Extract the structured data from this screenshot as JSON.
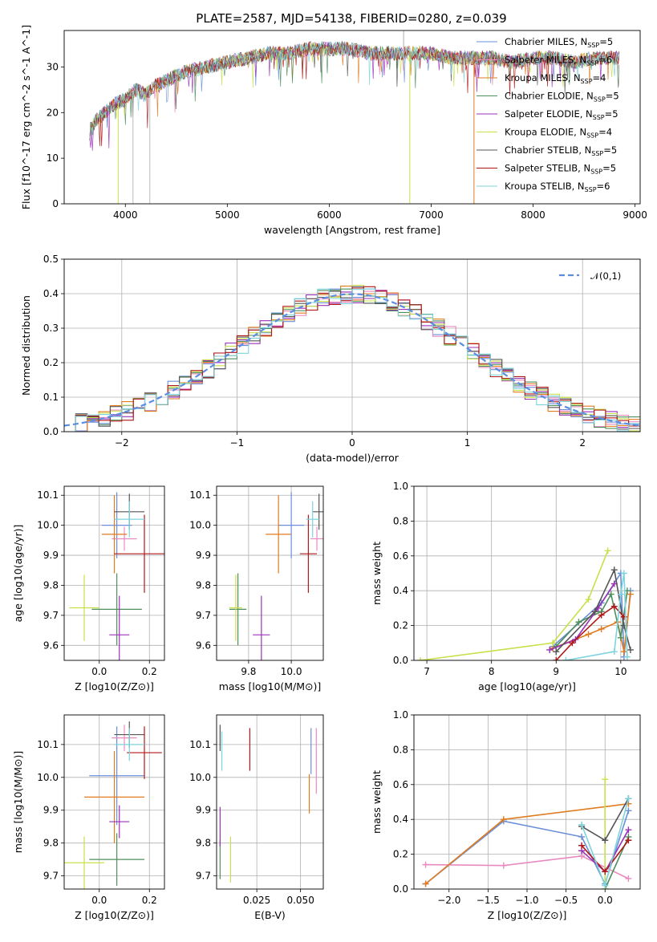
{
  "title": "PLATE=2587, MJD=54138, FIBERID=0280, z=0.039",
  "series": [
    {
      "name": "Chabrier MILES, N_SSP=5",
      "color": "#6a8fd8"
    },
    {
      "name": "Salpeter MILES, N_SSP=6",
      "color": "#e88ac0"
    },
    {
      "name": "Kroupa MILES, N_SSP=4",
      "color": "#e07b20"
    },
    {
      "name": "Chabrier ELODIE, N_SSP=5",
      "color": "#4e8f5e"
    },
    {
      "name": "Salpeter ELODIE, N_SSP=5",
      "color": "#9b30b8"
    },
    {
      "name": "Kroupa ELODIE, N_SSP=4",
      "color": "#c8e04a"
    },
    {
      "name": "Chabrier STELIB, N_SSP=5",
      "color": "#555555"
    },
    {
      "name": "Salpeter STELIB, N_SSP=5",
      "color": "#b01818"
    },
    {
      "name": "Kroupa STELIB, N_SSP=6",
      "color": "#7dd4dc"
    }
  ],
  "chart_data": [
    {
      "id": "spectrum",
      "type": "line",
      "xlabel": "wavelength [Angstrom, rest frame]",
      "ylabel": "Flux [fλ10^-17 erg cm^-2 s^-1 A^-1]",
      "xlim": [
        3400,
        9050
      ],
      "ylim": [
        0,
        38
      ],
      "xticks": [
        4000,
        5000,
        6000,
        7000,
        8000,
        9000
      ],
      "yticks": [
        0,
        10,
        20,
        30
      ],
      "x": [
        3650,
        3700,
        3800,
        3900,
        4000,
        4100,
        4200,
        4300,
        4400,
        4500,
        4600,
        4800,
        5000,
        5200,
        5400,
        5600,
        5800,
        6000,
        6200,
        6400,
        6600,
        6800,
        7000,
        7200,
        7400,
        7600,
        7800,
        8000,
        8200,
        8400,
        8600,
        8800
      ],
      "y": [
        16,
        18,
        20,
        22,
        23,
        25,
        24,
        26,
        27,
        28,
        29,
        30,
        31,
        32,
        33,
        33,
        34,
        34,
        34,
        33,
        33,
        33,
        33,
        32,
        32,
        32,
        31,
        32,
        32,
        31,
        32,
        32
      ]
    },
    {
      "id": "residuals",
      "type": "histogram",
      "xlabel": "(data-model)/error",
      "ylabel": "Normed distribution",
      "xlim": [
        -2.5,
        2.5
      ],
      "ylim": [
        0,
        0.5
      ],
      "xticks": [
        -2,
        -1,
        0,
        1,
        2
      ],
      "xticklabels": [
        "−2",
        "−1",
        "0",
        "1",
        "2"
      ],
      "yticks": [
        0,
        0.1,
        0.2,
        0.3,
        0.4,
        0.5
      ],
      "yticklabels": [
        "0.0",
        "0.1",
        "0.2",
        "0.3",
        "0.4",
        "0.5"
      ],
      "reference_label": "𝒩(0,1)",
      "legend": "top-right"
    },
    {
      "id": "age_vs_Z",
      "type": "scatter",
      "xlabel": "Z [log10(Z/Z⊙)]",
      "ylabel": "age [log10(age/yr)]",
      "xlim": [
        -0.14,
        0.26
      ],
      "ylim": [
        9.55,
        10.13
      ],
      "xticks": [
        0.0,
        0.2
      ],
      "xticklabels": [
        "0.0",
        "0.2"
      ],
      "yticks": [
        9.6,
        9.7,
        9.8,
        9.9,
        10.0,
        10.1
      ],
      "yticklabels": [
        "9.6",
        "9.7",
        "9.8",
        "9.9",
        "10.0",
        "10.1"
      ],
      "points": [
        {
          "x": 0.07,
          "y": 10.0,
          "xerr": 0.06,
          "yerr": 0.11
        },
        {
          "x": 0.1,
          "y": 9.955,
          "xerr": 0.05,
          "yerr": 0.04
        },
        {
          "x": 0.06,
          "y": 9.97,
          "xerr": 0.05,
          "yerr": 0.13
        },
        {
          "x": 0.07,
          "y": 9.72,
          "xerr": 0.1,
          "yerr": 0.12
        },
        {
          "x": 0.08,
          "y": 9.635,
          "xerr": 0.04,
          "yerr": 0.13
        },
        {
          "x": -0.06,
          "y": 9.725,
          "xerr": 0.06,
          "yerr": 0.11
        },
        {
          "x": 0.12,
          "y": 10.045,
          "xerr": 0.06,
          "yerr": 0.06
        },
        {
          "x": 0.18,
          "y": 9.905,
          "xerr": 0.12,
          "yerr": 0.13
        },
        {
          "x": 0.12,
          "y": 10.02,
          "xerr": 0.06,
          "yerr": 0.06
        }
      ]
    },
    {
      "id": "age_vs_mass",
      "type": "scatter",
      "xlabel": "mass [log10(M/M⊙)]",
      "ylabel": "",
      "xlim": [
        9.65,
        10.15
      ],
      "ylim": [
        9.55,
        10.13
      ],
      "xticks": [
        9.8,
        10.0
      ],
      "xticklabels": [
        "9.8",
        "10.0"
      ],
      "yticks": [
        9.6,
        9.7,
        9.8,
        9.9,
        10.0,
        10.1
      ],
      "yticklabels": [
        "9.6",
        "9.7",
        "9.8",
        "9.9",
        "10.0",
        "10.1"
      ],
      "points": [
        {
          "x": 10.0,
          "y": 10.0,
          "xerr": 0.06,
          "yerr": 0.11
        },
        {
          "x": 10.12,
          "y": 9.955,
          "xerr": 0.03,
          "yerr": 0.04
        },
        {
          "x": 9.94,
          "y": 9.97,
          "xerr": 0.06,
          "yerr": 0.13
        },
        {
          "x": 9.75,
          "y": 9.72,
          "xerr": 0.04,
          "yerr": 0.12
        },
        {
          "x": 9.86,
          "y": 9.635,
          "xerr": 0.04,
          "yerr": 0.13
        },
        {
          "x": 9.74,
          "y": 9.725,
          "xerr": 0.03,
          "yerr": 0.11
        },
        {
          "x": 10.13,
          "y": 10.045,
          "xerr": 0.03,
          "yerr": 0.06
        },
        {
          "x": 10.08,
          "y": 9.905,
          "xerr": 0.04,
          "yerr": 0.13
        },
        {
          "x": 10.1,
          "y": 10.02,
          "xerr": 0.03,
          "yerr": 0.06
        }
      ]
    },
    {
      "id": "mass_weight_vs_age",
      "type": "line",
      "xlabel": "age [log10(age/yr)]",
      "ylabel": "mass weight",
      "xlim": [
        6.8,
        10.3
      ],
      "ylim": [
        0,
        1.0
      ],
      "xticks": [
        7,
        8,
        9,
        10
      ],
      "xticklabels": [
        "7",
        "8",
        "9",
        "10"
      ],
      "yticks": [
        0,
        0.2,
        0.4,
        0.6,
        0.8,
        1.0
      ],
      "yticklabels": [
        "0.0",
        "0.2",
        "0.4",
        "0.6",
        "0.8",
        "1.0"
      ],
      "lines": [
        {
          "x": [
            8.95,
            9.7,
            10.0,
            10.05,
            10.15
          ],
          "y": [
            0.08,
            0.33,
            0.5,
            0.02,
            0.4
          ]
        },
        {
          "x": 8.95,
          "yv": 0.06
        },
        {
          "x": [
            8.95,
            9.5,
            9.7,
            9.95,
            10.05,
            10.15
          ],
          "y": [
            0.07,
            0.15,
            0.18,
            0.22,
            0.05,
            0.38
          ]
        },
        {
          "x": [
            9.0,
            9.35,
            9.7,
            9.85,
            10.0,
            10.1
          ],
          "y": [
            0.08,
            0.22,
            0.28,
            0.38,
            0.13,
            0.4
          ]
        },
        {
          "x": [
            8.9,
            9.3,
            9.65,
            9.9
          ],
          "y": [
            0.06,
            0.12,
            0.3,
            0.44
          ]
        },
        {
          "x": [
            6.9,
            8.95,
            9.5,
            9.8
          ],
          "y": [
            0.0,
            0.1,
            0.35,
            0.63
          ]
        },
        {
          "x": [
            9.0,
            9.6,
            9.9,
            10.05,
            10.15
          ],
          "y": [
            0.05,
            0.28,
            0.52,
            0.2,
            0.06
          ]
        },
        {
          "x": [
            9.0,
            9.25,
            9.7,
            9.9,
            10.05
          ],
          "y": [
            0.0,
            0.1,
            0.26,
            0.31,
            0.25
          ]
        },
        {
          "x": [
            9.15,
            9.9,
            10.0,
            10.05,
            10.1
          ],
          "y": [
            0.0,
            0.05,
            0.38,
            0.5,
            0.02
          ]
        }
      ]
    },
    {
      "id": "mass_vs_Z",
      "type": "scatter",
      "xlabel": "Z [log10(Z/Z⊙)]",
      "ylabel": "mass [log10(M/M⊙)]",
      "xlim": [
        -0.14,
        0.26
      ],
      "ylim": [
        9.66,
        10.19
      ],
      "xticks": [
        0.0,
        0.2
      ],
      "xticklabels": [
        "0.0",
        "0.2"
      ],
      "yticks": [
        9.7,
        9.8,
        9.9,
        10.0,
        10.1
      ],
      "yticklabels": [
        "9.7",
        "9.8",
        "9.9",
        "10.0",
        "10.1"
      ],
      "points": [
        {
          "x": 0.07,
          "y": 10.005,
          "xerr": 0.11,
          "yerr": 0.15
        },
        {
          "x": 0.1,
          "y": 10.12,
          "xerr": 0.05,
          "yerr": 0.04
        },
        {
          "x": 0.06,
          "y": 9.94,
          "xerr": 0.12,
          "yerr": 0.14
        },
        {
          "x": 0.07,
          "y": 9.75,
          "xerr": 0.11,
          "yerr": 0.08
        },
        {
          "x": 0.08,
          "y": 9.865,
          "xerr": 0.04,
          "yerr": 0.05
        },
        {
          "x": -0.06,
          "y": 9.74,
          "xerr": 0.08,
          "yerr": 0.08
        },
        {
          "x": 0.12,
          "y": 10.13,
          "xerr": 0.06,
          "yerr": 0.04
        },
        {
          "x": 0.18,
          "y": 10.075,
          "xerr": 0.07,
          "yerr": 0.08
        },
        {
          "x": 0.12,
          "y": 10.1,
          "xerr": 0.06,
          "yerr": 0.05
        }
      ]
    },
    {
      "id": "mass_vs_EBV",
      "type": "scatter",
      "xlabel": "E(B-V)",
      "ylabel": "",
      "xlim": [
        0.002,
        0.063
      ],
      "ylim": [
        9.66,
        10.19
      ],
      "xticks": [
        0.025,
        0.05
      ],
      "xticklabels": [
        "0.025",
        "0.050"
      ],
      "yticks": [
        9.7,
        9.8,
        9.9,
        10.0,
        10.1
      ],
      "yticklabels": [
        "9.7",
        "9.8",
        "9.9",
        "10.0",
        "10.1"
      ],
      "points": [
        {
          "x": 0.056,
          "y": 10.08,
          "xerr": 0,
          "yerr": 0.07
        },
        {
          "x": 0.059,
          "y": 10.05,
          "xerr": 0,
          "yerr": 0.1
        },
        {
          "x": 0.055,
          "y": 9.95,
          "xerr": 0,
          "yerr": 0.06
        },
        {
          "x": 0.004,
          "y": 9.75,
          "xerr": 0,
          "yerr": 0.06
        },
        {
          "x": 0.004,
          "y": 9.85,
          "xerr": 0,
          "yerr": 0.06
        },
        {
          "x": 0.01,
          "y": 9.75,
          "xerr": 0,
          "yerr": 0.07
        },
        {
          "x": 0.004,
          "y": 10.12,
          "xerr": 0,
          "yerr": 0.04
        },
        {
          "x": 0.021,
          "y": 10.085,
          "xerr": 0,
          "yerr": 0.065
        },
        {
          "x": 0.005,
          "y": 10.08,
          "xerr": 0,
          "yerr": 0.06
        }
      ]
    },
    {
      "id": "mass_weight_vs_Z",
      "type": "line",
      "xlabel": "Z [log10(Z/Z⊙)]",
      "ylabel": "mass weight",
      "xlim": [
        -2.45,
        0.45
      ],
      "ylim": [
        0,
        1.0
      ],
      "xticks": [
        -2.0,
        -1.5,
        -1.0,
        -0.5,
        0.0
      ],
      "xticklabels": [
        "−2.0",
        "−1.5",
        "−1.0",
        "−0.5",
        "0.0"
      ],
      "yticks": [
        0,
        0.2,
        0.4,
        0.6,
        0.8,
        1.0
      ],
      "yticklabels": [
        "0.0",
        "0.2",
        "0.4",
        "0.6",
        "0.8",
        "1.0"
      ],
      "lines": [
        {
          "x": [
            -2.3,
            -1.3,
            -0.3,
            0.0,
            0.3
          ],
          "y": [
            0.03,
            0.39,
            0.3,
            0.03,
            0.45
          ]
        },
        {
          "x": [
            -2.3,
            -1.3,
            -0.3,
            0.3
          ],
          "y": [
            0.14,
            0.135,
            0.19,
            0.06
          ]
        },
        {
          "x": [
            -2.3,
            -1.3,
            0.3
          ],
          "y": [
            0.03,
            0.4,
            0.49
          ]
        },
        {
          "x": [
            0.0,
            0.3
          ],
          "y": [
            0.0,
            0.3
          ]
        },
        {
          "x": [
            -0.3,
            0.0,
            0.3
          ],
          "y": [
            0.22,
            0.1,
            0.34
          ]
        },
        {
          "x": [
            0.0,
            0.0
          ],
          "y": [
            0.0,
            0.63
          ]
        },
        {
          "x": [
            -0.3,
            0.0,
            0.3
          ],
          "y": [
            0.36,
            0.28,
            0.52
          ]
        },
        {
          "x": [
            -0.3,
            0.0,
            0.3
          ],
          "y": [
            0.25,
            0.1,
            0.28
          ]
        },
        {
          "x": [
            -0.3,
            0.0,
            0.3
          ],
          "y": [
            0.37,
            0.02,
            0.52
          ]
        }
      ]
    }
  ]
}
